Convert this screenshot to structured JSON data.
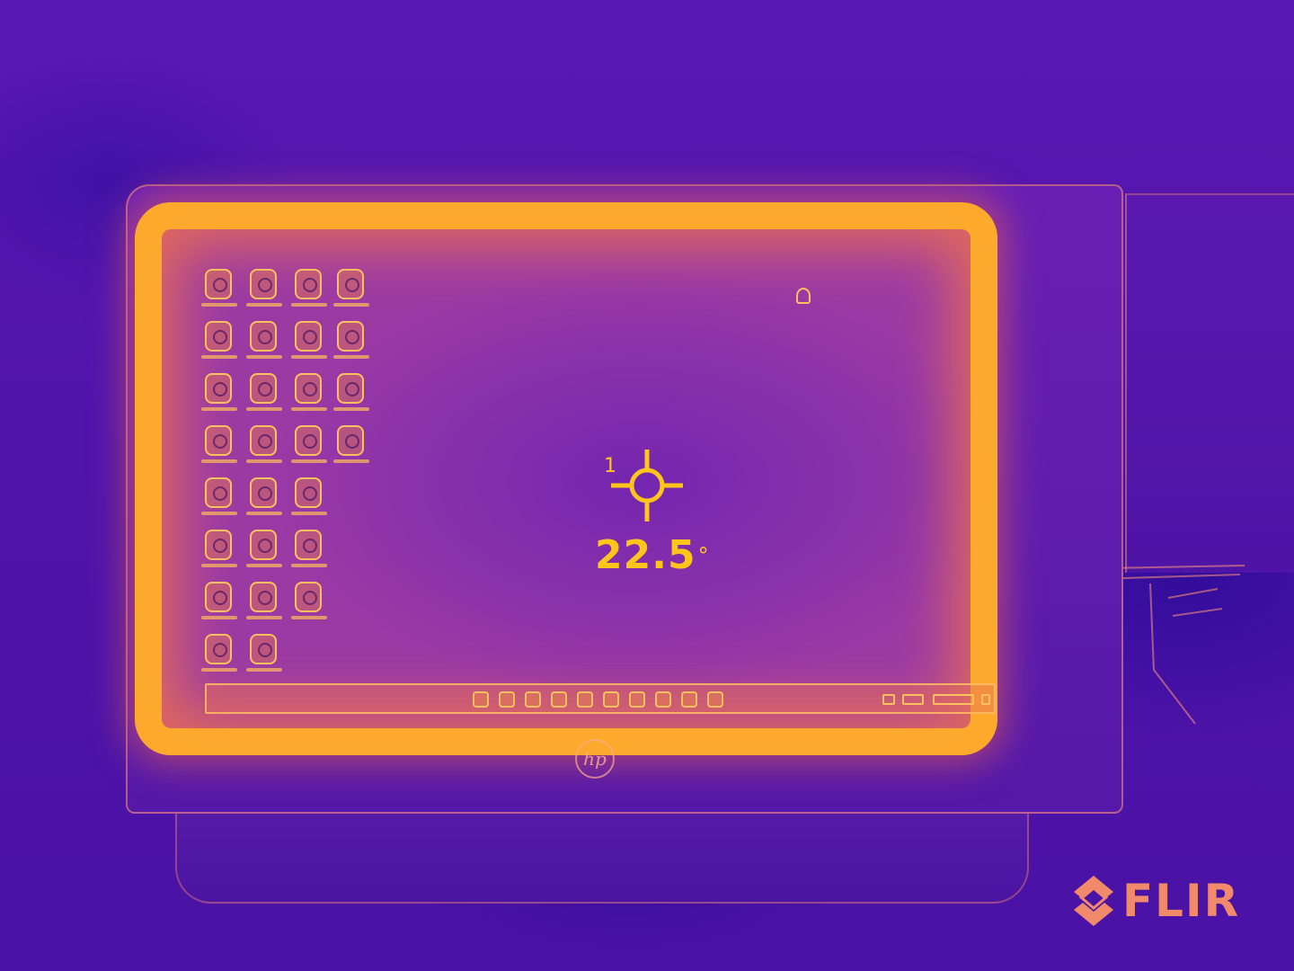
{
  "measurement": {
    "spot_id": "1",
    "temperature_value": "22.5",
    "temperature_unit": "°"
  },
  "branding": {
    "camera_logo_text": "FLIR",
    "monitor_logo_text": "hp"
  },
  "palette": {
    "background": "#4a12a8",
    "hot": "#ffb028",
    "warm": "#f07850",
    "overlay_text": "#ffc51a",
    "logo": "#f08a6a"
  },
  "desktop": {
    "icon_columns": [
      8,
      8,
      7,
      4
    ],
    "taskbar_icon_count": 10,
    "tray_item_count": 4
  }
}
